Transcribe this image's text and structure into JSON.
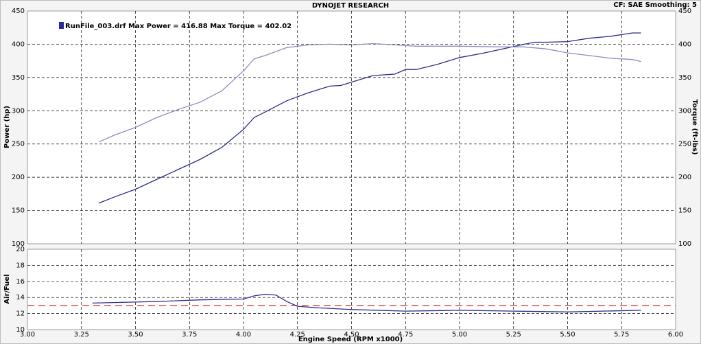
{
  "chart_data": [
    {
      "type": "line",
      "title": "DYNOJET RESEARCH",
      "subtitle": "CF: SAE  Smoothing: 5",
      "ylabel": "Power (hp)",
      "y2label": "Torque (ft-lbs)",
      "legend": "RunFile_003.drf Max Power = 416.88     Max Torque = 402.02",
      "legend_color": "#2a2aa0",
      "legend_position": "upper left",
      "xlim": [
        3,
        6
      ],
      "ylim": [
        100,
        450
      ],
      "yticks": [
        100,
        150,
        200,
        250,
        300,
        350,
        400,
        450
      ],
      "y2lim": [
        100,
        450
      ],
      "y2ticks": [
        100,
        150,
        200,
        250,
        300,
        350,
        400,
        450
      ],
      "grid": true,
      "series": [
        {
          "name": "Power",
          "color": "#2a2a8c",
          "x": [
            3.33,
            3.4,
            3.5,
            3.6,
            3.7,
            3.8,
            3.9,
            4.0,
            4.05,
            4.1,
            4.2,
            4.3,
            4.4,
            4.45,
            4.5,
            4.6,
            4.7,
            4.75,
            4.8,
            4.9,
            5.0,
            5.1,
            5.2,
            5.3,
            5.35,
            5.4,
            5.5,
            5.6,
            5.7,
            5.8,
            5.84
          ],
          "values": [
            161,
            170,
            182,
            197,
            212,
            227,
            245,
            272,
            290,
            298,
            315,
            327,
            337,
            338,
            343,
            353,
            355,
            362,
            362,
            370,
            380,
            386,
            393,
            400,
            403,
            403,
            404,
            409,
            412,
            417,
            417
          ]
        },
        {
          "name": "Torque",
          "color": "#8c8cc0",
          "axis": "y2",
          "x": [
            3.33,
            3.4,
            3.5,
            3.6,
            3.7,
            3.8,
            3.9,
            3.95,
            4.0,
            4.05,
            4.1,
            4.2,
            4.3,
            4.4,
            4.5,
            4.6,
            4.7,
            4.8,
            5.0,
            5.2,
            5.3,
            5.4,
            5.5,
            5.6,
            5.7,
            5.8,
            5.84
          ],
          "values": [
            253,
            263,
            275,
            290,
            302,
            313,
            330,
            345,
            360,
            378,
            383,
            395,
            399,
            400,
            399,
            401,
            399,
            397,
            397,
            396,
            396,
            393,
            387,
            383,
            379,
            377,
            374
          ]
        }
      ]
    },
    {
      "type": "line",
      "ylabel": "Air/Fuel",
      "xlabel": "Engine Speed (RPM x1000)",
      "xlim": [
        3,
        6
      ],
      "xticks": [
        {
          "value": 3,
          "label": "3.00"
        },
        {
          "value": 3.25,
          "label": "3.25"
        },
        {
          "value": 3.5,
          "label": "3.50"
        },
        {
          "value": 3.75,
          "label": "3.75"
        },
        {
          "value": 4,
          "label": "4.00"
        },
        {
          "value": 4.25,
          "label": "4.25"
        },
        {
          "value": 4.5,
          "label": "4.50"
        },
        {
          "value": 4.75,
          "label": "4.75"
        },
        {
          "value": 5,
          "label": "5.00"
        },
        {
          "value": 5.25,
          "label": "5.25"
        },
        {
          "value": 5.5,
          "label": "5.50"
        },
        {
          "value": 5.75,
          "label": "5.75"
        },
        {
          "value": 6,
          "label": "6.00"
        }
      ],
      "ylim": [
        10,
        20
      ],
      "yticks": [
        10,
        12,
        14,
        16,
        18,
        20
      ],
      "grid": true,
      "reference_line": {
        "value": 13,
        "color": "#e05050"
      },
      "series": [
        {
          "name": "Air/Fuel",
          "color": "#2a2a8c",
          "x": [
            3.3,
            3.6,
            3.8,
            4.0,
            4.05,
            4.1,
            4.15,
            4.2,
            4.25,
            4.35,
            4.5,
            4.75,
            5.0,
            5.25,
            5.5,
            5.84
          ],
          "values": [
            13.3,
            13.5,
            13.7,
            13.8,
            14.2,
            14.4,
            14.3,
            13.5,
            12.9,
            12.7,
            12.5,
            12.3,
            12.4,
            12.3,
            12.2,
            12.4
          ]
        }
      ]
    }
  ]
}
